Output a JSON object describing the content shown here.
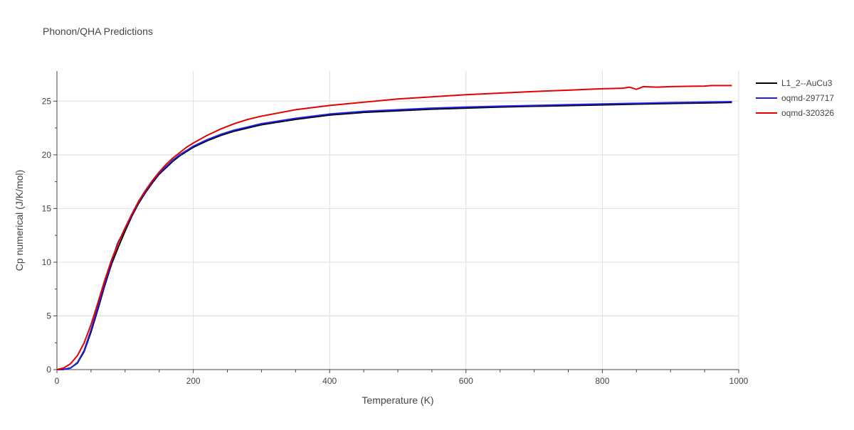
{
  "chart_data": {
    "type": "line",
    "title": "Phonon/QHA Predictions",
    "xlabel": "Temperature (K)",
    "ylabel": "Cp numerical (J/K/mol)",
    "xlim": [
      0,
      1000
    ],
    "ylim": [
      0,
      27.8
    ],
    "xticks": [
      0,
      200,
      400,
      600,
      800,
      1000
    ],
    "yticks": [
      0,
      5,
      10,
      15,
      20,
      25
    ],
    "grid": true,
    "legend_position": "top-right",
    "series": [
      {
        "name": "L1_2--AuCu3",
        "color": "#000000",
        "x": [
          0,
          10,
          20,
          30,
          40,
          50,
          60,
          70,
          80,
          90,
          100,
          110,
          120,
          130,
          140,
          150,
          160,
          170,
          180,
          190,
          200,
          220,
          240,
          260,
          280,
          300,
          350,
          400,
          450,
          500,
          550,
          600,
          650,
          700,
          750,
          800,
          850,
          900,
          950,
          990
        ],
        "y": [
          0,
          0.02,
          0.15,
          0.6,
          1.7,
          3.5,
          5.6,
          7.8,
          9.8,
          11.4,
          12.9,
          14.3,
          15.5,
          16.5,
          17.4,
          18.2,
          18.8,
          19.4,
          19.9,
          20.3,
          20.7,
          21.3,
          21.8,
          22.2,
          22.5,
          22.8,
          23.3,
          23.7,
          23.95,
          24.1,
          24.25,
          24.35,
          24.45,
          24.52,
          24.58,
          24.65,
          24.72,
          24.78,
          24.83,
          24.88
        ]
      },
      {
        "name": "oqmd-297717",
        "color": "#1f1fe6",
        "x": [
          0,
          10,
          20,
          30,
          40,
          50,
          60,
          70,
          80,
          88,
          90,
          100,
          110,
          120,
          130,
          140,
          150,
          160,
          170,
          180,
          190,
          200,
          220,
          240,
          260,
          280,
          300,
          350,
          400,
          450,
          500,
          550,
          600,
          650,
          700,
          750,
          800,
          850,
          900,
          950,
          990
        ],
        "y": [
          0,
          0.02,
          0.15,
          0.65,
          1.8,
          3.7,
          5.8,
          8.0,
          10.0,
          11.6,
          11.9,
          13.1,
          14.4,
          15.6,
          16.6,
          17.5,
          18.3,
          18.9,
          19.5,
          20.0,
          20.4,
          20.8,
          21.4,
          21.9,
          22.3,
          22.6,
          22.9,
          23.4,
          23.8,
          24.05,
          24.2,
          24.35,
          24.45,
          24.53,
          24.6,
          24.67,
          24.74,
          24.8,
          24.86,
          24.91,
          24.95
        ]
      },
      {
        "name": "oqmd-320326",
        "color": "#e60000",
        "x": [
          0,
          10,
          20,
          30,
          40,
          50,
          60,
          70,
          80,
          90,
          100,
          110,
          120,
          130,
          140,
          150,
          160,
          170,
          180,
          190,
          200,
          220,
          240,
          260,
          280,
          300,
          350,
          400,
          450,
          500,
          550,
          600,
          650,
          700,
          750,
          780,
          800,
          830,
          840,
          850,
          860,
          880,
          900,
          920,
          950,
          960,
          990
        ],
        "y": [
          0,
          0.15,
          0.55,
          1.3,
          2.5,
          4.2,
          6.2,
          8.3,
          10.2,
          11.8,
          13.2,
          14.5,
          15.7,
          16.7,
          17.6,
          18.4,
          19.1,
          19.7,
          20.2,
          20.7,
          21.1,
          21.8,
          22.4,
          22.9,
          23.3,
          23.6,
          24.2,
          24.6,
          24.9,
          25.2,
          25.4,
          25.6,
          25.75,
          25.9,
          26.02,
          26.1,
          26.15,
          26.2,
          26.3,
          26.1,
          26.35,
          26.3,
          26.35,
          26.38,
          26.4,
          26.45,
          26.45
        ]
      }
    ]
  }
}
